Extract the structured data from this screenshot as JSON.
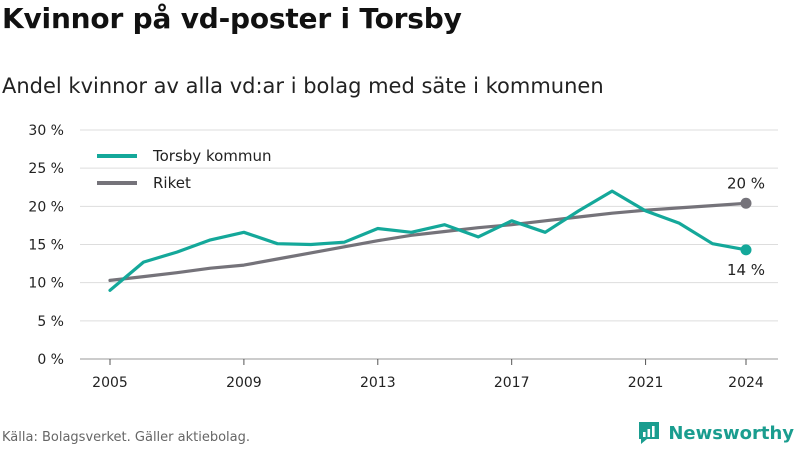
{
  "header": {
    "title": "Kvinnor på vd-poster i Torsby",
    "subtitle": "Andel kvinnor av alla vd:ar i bolag med säte i kommunen"
  },
  "footer": {
    "source": "Källa: Bolagsverket. Gäller aktiebolag.",
    "brand": "Newsworthy"
  },
  "colors": {
    "torsby": "#14a89a",
    "riket": "#75737a",
    "grid": "#dddddd",
    "brand": "#1a9d8f"
  },
  "chart_data": {
    "type": "line",
    "title": "Kvinnor på vd-poster i Torsby",
    "subtitle": "Andel kvinnor av alla vd:ar i bolag med säte i kommunen",
    "xlabel": "",
    "ylabel": "",
    "xlim": [
      2005,
      2024
    ],
    "ylim": [
      0,
      30
    ],
    "x_ticks": [
      2005,
      2009,
      2013,
      2017,
      2021,
      2024
    ],
    "y_ticks": [
      0,
      5,
      10,
      15,
      20,
      25,
      30
    ],
    "y_tick_labels": [
      "0 %",
      "5 %",
      "10 %",
      "15 %",
      "20 %",
      "25 %",
      "30 %"
    ],
    "grid": true,
    "legend_position": "top-left",
    "series": [
      {
        "name": "Torsby kommun",
        "color": "#14a89a",
        "x": [
          2005,
          2006,
          2007,
          2008,
          2009,
          2010,
          2011,
          2012,
          2013,
          2014,
          2015,
          2016,
          2017,
          2018,
          2019,
          2020,
          2021,
          2022,
          2023,
          2024
        ],
        "values": [
          9.0,
          12.7,
          14.0,
          15.6,
          16.6,
          15.1,
          15.0,
          15.3,
          17.1,
          16.6,
          17.6,
          16.0,
          18.1,
          16.6,
          19.4,
          22.0,
          19.4,
          17.8,
          15.1,
          14.3
        ],
        "end_label": "14 %"
      },
      {
        "name": "Riket",
        "color": "#75737a",
        "x": [
          2005,
          2006,
          2007,
          2008,
          2009,
          2010,
          2011,
          2012,
          2013,
          2014,
          2015,
          2016,
          2017,
          2018,
          2019,
          2020,
          2021,
          2022,
          2023,
          2024
        ],
        "values": [
          10.3,
          10.8,
          11.3,
          11.9,
          12.3,
          13.1,
          13.9,
          14.7,
          15.5,
          16.2,
          16.7,
          17.2,
          17.6,
          18.1,
          18.6,
          19.1,
          19.5,
          19.8,
          20.1,
          20.4
        ],
        "end_label": "20 %"
      }
    ]
  }
}
